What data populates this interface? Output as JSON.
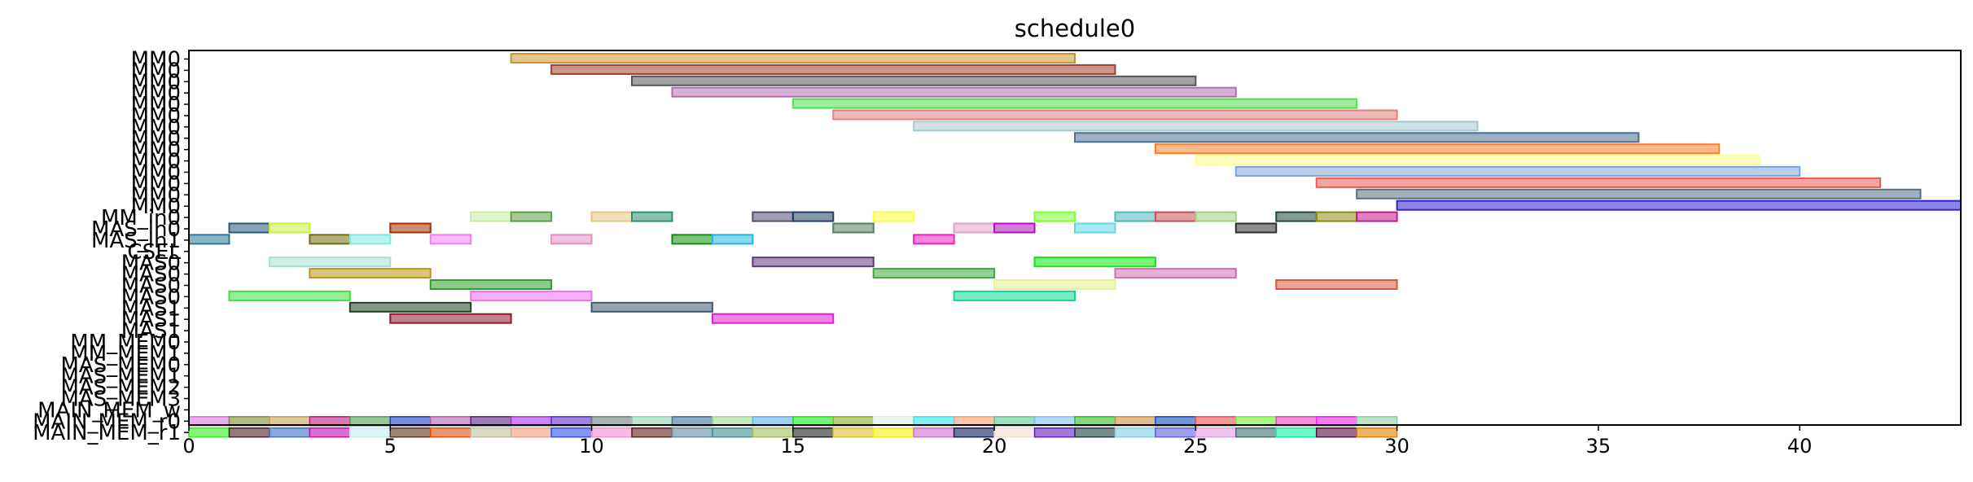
{
  "chart_data": {
    "type": "gantt",
    "title": "schedule0",
    "xlabel": "",
    "ylabel": "",
    "xlim": [
      0,
      44
    ],
    "xticks": [
      0,
      5,
      10,
      15,
      20,
      25,
      30,
      35,
      40
    ],
    "grid": false,
    "rows": [
      "MM0",
      "MM0",
      "MM0",
      "MM0",
      "MM0",
      "MM0",
      "MM0",
      "MM0",
      "MM0",
      "MM0",
      "MM0",
      "MM0",
      "MM0",
      "MM0",
      "MM_in0",
      "MAS_in0",
      "MAS_in1",
      "CSEL",
      "MAS0",
      "MAS0",
      "MAS0",
      "MAS0",
      "MAS1",
      "MAS1",
      "MAS1",
      "MM_MEM0",
      "MM_MEM1",
      "MAS_MEM0",
      "MAS_MEM1",
      "MAS_MEM2",
      "MAS_MEM3",
      "MAIN_MEM_w",
      "MAIN_MEM_r0",
      "MAIN_MEM_r1"
    ],
    "bars": [
      {
        "row": 0,
        "start": 8,
        "end": 22,
        "color": "#c8962e"
      },
      {
        "row": 1,
        "start": 9,
        "end": 23,
        "color": "#a0402a"
      },
      {
        "row": 2,
        "start": 11,
        "end": 25,
        "color": "#555555"
      },
      {
        "row": 3,
        "start": 12,
        "end": 26,
        "color": "#b070b0"
      },
      {
        "row": 4,
        "start": 15,
        "end": 29,
        "color": "#50e050"
      },
      {
        "row": 5,
        "start": 16,
        "end": 30,
        "color": "#e08080"
      },
      {
        "row": 6,
        "start": 18,
        "end": 32,
        "color": "#a8c8d0"
      },
      {
        "row": 7,
        "start": 22,
        "end": 36,
        "color": "#4a6f94"
      },
      {
        "row": 8,
        "start": 24,
        "end": 38,
        "color": "#ff7f2a"
      },
      {
        "row": 9,
        "start": 25,
        "end": 39,
        "color": "#ffff90"
      },
      {
        "row": 10,
        "start": 26,
        "end": 40,
        "color": "#7da6dc"
      },
      {
        "row": 11,
        "start": 28,
        "end": 42,
        "color": "#e85c50"
      },
      {
        "row": 12,
        "start": 29,
        "end": 43,
        "color": "#5a7080"
      },
      {
        "row": 13,
        "start": 30,
        "end": 44,
        "color": "#3020d0"
      },
      {
        "row": 14,
        "start": 7,
        "end": 8,
        "color": "#c8f0a0"
      },
      {
        "row": 14,
        "start": 8,
        "end": 9,
        "color": "#5aa040"
      },
      {
        "row": 14,
        "start": 10,
        "end": 11,
        "color": "#e0c880"
      },
      {
        "row": 14,
        "start": 11,
        "end": 12,
        "color": "#2a9070"
      },
      {
        "row": 14,
        "start": 14,
        "end": 15,
        "color": "#505070"
      },
      {
        "row": 14,
        "start": 15,
        "end": 16,
        "color": "#204060"
      },
      {
        "row": 14,
        "start": 17,
        "end": 18,
        "color": "#ffff40"
      },
      {
        "row": 14,
        "start": 21,
        "end": 22,
        "color": "#80ff30"
      },
      {
        "row": 14,
        "start": 23,
        "end": 24,
        "color": "#50b8b8"
      },
      {
        "row": 14,
        "start": 24,
        "end": 25,
        "color": "#c85058"
      },
      {
        "row": 14,
        "start": 25,
        "end": 26,
        "color": "#a0d080"
      },
      {
        "row": 14,
        "start": 27,
        "end": 28,
        "color": "#204838"
      },
      {
        "row": 14,
        "start": 28,
        "end": 29,
        "color": "#909010"
      },
      {
        "row": 14,
        "start": 29,
        "end": 30,
        "color": "#c01890"
      },
      {
        "row": 15,
        "start": 1,
        "end": 2,
        "color": "#205878"
      },
      {
        "row": 15,
        "start": 2,
        "end": 3,
        "color": "#c8f040"
      },
      {
        "row": 15,
        "start": 5,
        "end": 6,
        "color": "#a03000"
      },
      {
        "row": 15,
        "start": 16,
        "end": 17,
        "color": "#508060"
      },
      {
        "row": 15,
        "start": 19,
        "end": 20,
        "color": "#e0a0c8"
      },
      {
        "row": 15,
        "start": 20,
        "end": 21,
        "color": "#b010c0"
      },
      {
        "row": 15,
        "start": 22,
        "end": 23,
        "color": "#60d8e8"
      },
      {
        "row": 15,
        "start": 26,
        "end": 27,
        "color": "#303030"
      },
      {
        "row": 16,
        "start": 0,
        "end": 1,
        "color": "#2a7898"
      },
      {
        "row": 16,
        "start": 3,
        "end": 4,
        "color": "#707010"
      },
      {
        "row": 16,
        "start": 4,
        "end": 5,
        "color": "#80e8e8"
      },
      {
        "row": 16,
        "start": 6,
        "end": 7,
        "color": "#f080f0"
      },
      {
        "row": 16,
        "start": 9,
        "end": 10,
        "color": "#e090c0"
      },
      {
        "row": 16,
        "start": 12,
        "end": 13,
        "color": "#109010"
      },
      {
        "row": 16,
        "start": 13,
        "end": 14,
        "color": "#20b8e0"
      },
      {
        "row": 16,
        "start": 18,
        "end": 19,
        "color": "#f020c0"
      },
      {
        "row": 18,
        "start": 2,
        "end": 5,
        "color": "#a8e0d0"
      },
      {
        "row": 18,
        "start": 14,
        "end": 17,
        "color": "#603878"
      },
      {
        "row": 18,
        "start": 21,
        "end": 24,
        "color": "#10e810"
      },
      {
        "row": 19,
        "start": 3,
        "end": 6,
        "color": "#b89818"
      },
      {
        "row": 19,
        "start": 17,
        "end": 20,
        "color": "#40a840"
      },
      {
        "row": 19,
        "start": 23,
        "end": 26,
        "color": "#d070b0"
      },
      {
        "row": 20,
        "start": 6,
        "end": 9,
        "color": "#30a030"
      },
      {
        "row": 20,
        "start": 20,
        "end": 23,
        "color": "#e8f090"
      },
      {
        "row": 20,
        "start": 27,
        "end": 30,
        "color": "#d85840"
      },
      {
        "row": 21,
        "start": 1,
        "end": 4,
        "color": "#40e040"
      },
      {
        "row": 21,
        "start": 7,
        "end": 10,
        "color": "#f070f0"
      },
      {
        "row": 21,
        "start": 19,
        "end": 22,
        "color": "#10d890"
      },
      {
        "row": 22,
        "start": 4,
        "end": 7,
        "color": "#204020"
      },
      {
        "row": 22,
        "start": 10,
        "end": 13,
        "color": "#405870"
      },
      {
        "row": 23,
        "start": 5,
        "end": 8,
        "color": "#901830"
      },
      {
        "row": 23,
        "start": 13,
        "end": 16,
        "color": "#e020d0"
      }
    ],
    "mem_rows": {
      "r0": [
        "#e070e0",
        "#809030",
        "#c8a050",
        "#c02080",
        "#50a050",
        "#2040c0",
        "#b060b0",
        "#602080",
        "#b030f0",
        "#6030d0",
        "#708080",
        "#90d8b0",
        "#4070a0",
        "#a0d890",
        "#60b0f0",
        "#10f010",
        "#90b020",
        "#e0f0e0",
        "#30e8f8",
        "#f8a070",
        "#60c890",
        "#80c0f8",
        "#30c020",
        "#d09040",
        "#1050c0",
        "#f05050",
        "#70f030",
        "#f040c0",
        "#f020f0",
        "#90d0a0"
      ],
      "r1": [
        "#30f020",
        "#502020",
        "#4070c0",
        "#c010b0",
        "#c0f0f0",
        "#603020",
        "#e05010",
        "#c0c0a0",
        "#f0a080",
        "#3050f0",
        "#f090d0",
        "#602020",
        "#6090a0",
        "#409090",
        "#a0c060",
        "#1f1f1f",
        "#e0c030",
        "#f0f010",
        "#d070d0",
        "#102060",
        "#f0e0d0",
        "#6020c0",
        "#204040",
        "#80d0e0",
        "#6060e0",
        "#e0a0e0",
        "#407070",
        "#10f0a0",
        "#501040",
        "#e08000"
      ]
    }
  }
}
